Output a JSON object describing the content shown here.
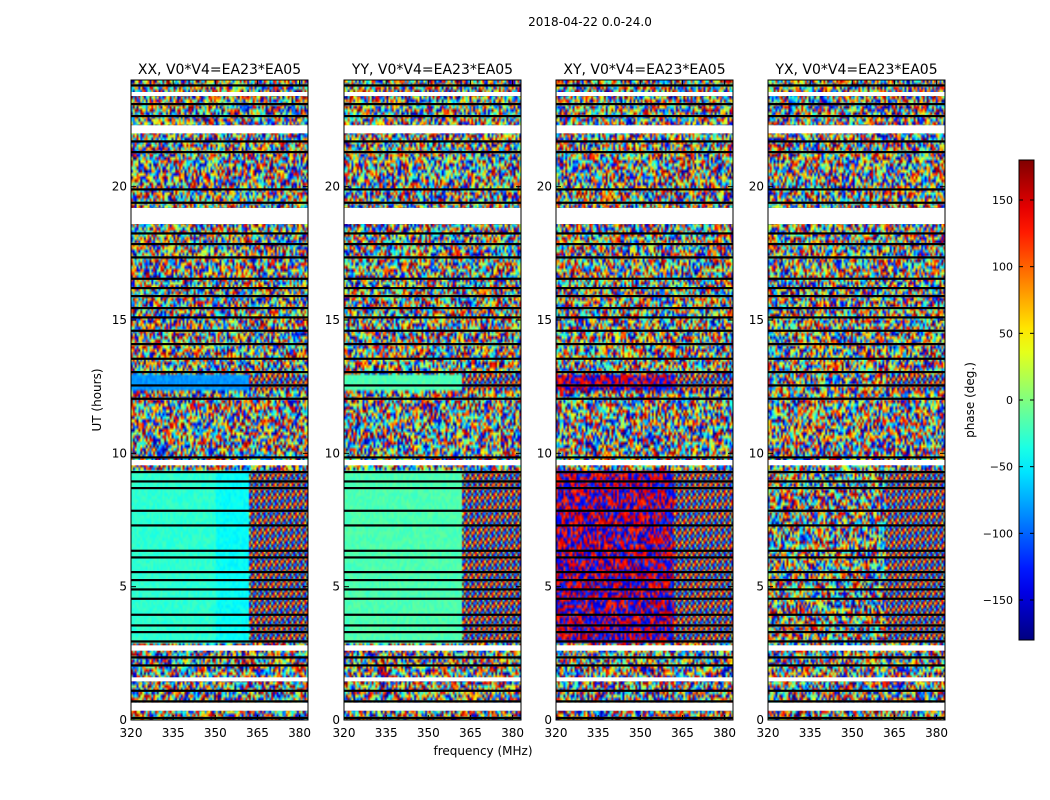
{
  "figure": {
    "suptitle": "2018-04-22 0.0-24.0",
    "ylabel": "UT (hours)",
    "xlabel": "frequency (MHz)"
  },
  "chart_data": {
    "type": "heatmap",
    "x": {
      "label": "frequency (MHz)",
      "range": [
        320,
        383
      ],
      "ticks": [
        320,
        335,
        350,
        365,
        380
      ]
    },
    "y": {
      "label": "UT (hours)",
      "range": [
        0,
        24
      ],
      "ticks": [
        0,
        5,
        10,
        15,
        20
      ]
    },
    "color_scale": {
      "label": "phase (deg.)",
      "range": [
        -180,
        180
      ],
      "ticks": [
        -150,
        -100,
        -50,
        0,
        50,
        100,
        150
      ],
      "colormap": "jet"
    },
    "panels": [
      {
        "title": "XX, V0*V4=EA23*EA05",
        "polarization": "XX"
      },
      {
        "title": "YY, V0*V4=EA23*EA05",
        "polarization": "YY"
      },
      {
        "title": "XY, V0*V4=EA23*EA05",
        "polarization": "XY"
      },
      {
        "title": "YX, V0*V4=EA23*EA05",
        "polarization": "YX"
      }
    ],
    "grid": false
  }
}
